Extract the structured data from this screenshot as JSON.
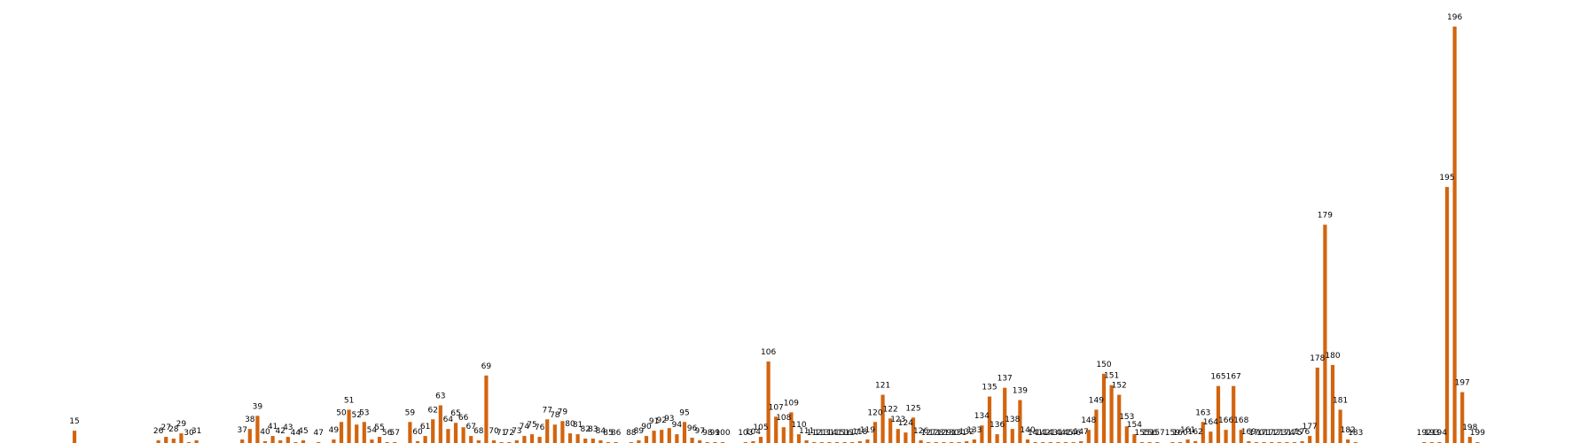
{
  "chart_data": {
    "type": "bar",
    "title": "",
    "xlabel": "",
    "ylabel": "",
    "grid": false,
    "legend": "none",
    "bar_color": "#d3640e",
    "label_color": "#000000",
    "background": "#ffffff",
    "ylim": [
      0,
      480
    ],
    "points": [
      {
        "x": 15,
        "value": 14
      },
      {
        "x": 26,
        "value": 3
      },
      {
        "x": 27,
        "value": 7
      },
      {
        "x": 28,
        "value": 5
      },
      {
        "x": 29,
        "value": 11
      },
      {
        "x": 30,
        "value": 1
      },
      {
        "x": 31,
        "value": 3
      },
      {
        "x": 37,
        "value": 4
      },
      {
        "x": 38,
        "value": 16
      },
      {
        "x": 39,
        "value": 31
      },
      {
        "x": 40,
        "value": 2
      },
      {
        "x": 41,
        "value": 8
      },
      {
        "x": 42,
        "value": 3
      },
      {
        "x": 43,
        "value": 7
      },
      {
        "x": 44,
        "value": 1
      },
      {
        "x": 45,
        "value": 3
      },
      {
        "x": 47,
        "value": 1
      },
      {
        "x": 49,
        "value": 4
      },
      {
        "x": 50,
        "value": 24
      },
      {
        "x": 51,
        "value": 38
      },
      {
        "x": 52,
        "value": 21
      },
      {
        "x": 53,
        "value": 24
      },
      {
        "x": 54,
        "value": 4
      },
      {
        "x": 55,
        "value": 7
      },
      {
        "x": 56,
        "value": 1
      },
      {
        "x": 57,
        "value": 1
      },
      {
        "x": 59,
        "value": 24
      },
      {
        "x": 60,
        "value": 2
      },
      {
        "x": 61,
        "value": 8
      },
      {
        "x": 62,
        "value": 27
      },
      {
        "x": 63,
        "value": 43
      },
      {
        "x": 64,
        "value": 16
      },
      {
        "x": 65,
        "value": 23
      },
      {
        "x": 66,
        "value": 18
      },
      {
        "x": 67,
        "value": 8
      },
      {
        "x": 68,
        "value": 3
      },
      {
        "x": 69,
        "value": 77
      },
      {
        "x": 70,
        "value": 3
      },
      {
        "x": 71,
        "value": 1
      },
      {
        "x": 72,
        "value": 1
      },
      {
        "x": 73,
        "value": 3
      },
      {
        "x": 74,
        "value": 8
      },
      {
        "x": 75,
        "value": 10
      },
      {
        "x": 76,
        "value": 7
      },
      {
        "x": 77,
        "value": 27
      },
      {
        "x": 78,
        "value": 21
      },
      {
        "x": 79,
        "value": 25
      },
      {
        "x": 80,
        "value": 11
      },
      {
        "x": 81,
        "value": 10
      },
      {
        "x": 82,
        "value": 5
      },
      {
        "x": 83,
        "value": 5
      },
      {
        "x": 84,
        "value": 3
      },
      {
        "x": 85,
        "value": 1
      },
      {
        "x": 86,
        "value": 1
      },
      {
        "x": 88,
        "value": 1
      },
      {
        "x": 89,
        "value": 3
      },
      {
        "x": 90,
        "value": 8
      },
      {
        "x": 91,
        "value": 14
      },
      {
        "x": 92,
        "value": 15
      },
      {
        "x": 93,
        "value": 17
      },
      {
        "x": 94,
        "value": 10
      },
      {
        "x": 95,
        "value": 24
      },
      {
        "x": 96,
        "value": 6
      },
      {
        "x": 97,
        "value": 3
      },
      {
        "x": 98,
        "value": 1
      },
      {
        "x": 99,
        "value": 1
      },
      {
        "x": 100,
        "value": 1
      },
      {
        "x": 103,
        "value": 1
      },
      {
        "x": 104,
        "value": 2
      },
      {
        "x": 105,
        "value": 7
      },
      {
        "x": 106,
        "value": 93
      },
      {
        "x": 107,
        "value": 30
      },
      {
        "x": 108,
        "value": 18
      },
      {
        "x": 109,
        "value": 35
      },
      {
        "x": 110,
        "value": 10
      },
      {
        "x": 111,
        "value": 3
      },
      {
        "x": 112,
        "value": 1
      },
      {
        "x": 113,
        "value": 1
      },
      {
        "x": 114,
        "value": 1
      },
      {
        "x": 115,
        "value": 1
      },
      {
        "x": 116,
        "value": 1
      },
      {
        "x": 117,
        "value": 1
      },
      {
        "x": 118,
        "value": 2
      },
      {
        "x": 119,
        "value": 4
      },
      {
        "x": 120,
        "value": 24
      },
      {
        "x": 121,
        "value": 55
      },
      {
        "x": 122,
        "value": 28
      },
      {
        "x": 123,
        "value": 16
      },
      {
        "x": 124,
        "value": 12
      },
      {
        "x": 125,
        "value": 29
      },
      {
        "x": 126,
        "value": 3
      },
      {
        "x": 127,
        "value": 1
      },
      {
        "x": 128,
        "value": 1
      },
      {
        "x": 129,
        "value": 1
      },
      {
        "x": 130,
        "value": 1
      },
      {
        "x": 131,
        "value": 1
      },
      {
        "x": 132,
        "value": 2
      },
      {
        "x": 133,
        "value": 4
      },
      {
        "x": 134,
        "value": 20
      },
      {
        "x": 135,
        "value": 53
      },
      {
        "x": 136,
        "value": 10
      },
      {
        "x": 137,
        "value": 63
      },
      {
        "x": 138,
        "value": 16
      },
      {
        "x": 139,
        "value": 49
      },
      {
        "x": 140,
        "value": 4
      },
      {
        "x": 141,
        "value": 1
      },
      {
        "x": 142,
        "value": 1
      },
      {
        "x": 143,
        "value": 1
      },
      {
        "x": 144,
        "value": 1
      },
      {
        "x": 145,
        "value": 1
      },
      {
        "x": 146,
        "value": 1
      },
      {
        "x": 147,
        "value": 2
      },
      {
        "x": 148,
        "value": 15
      },
      {
        "x": 149,
        "value": 38
      },
      {
        "x": 150,
        "value": 79
      },
      {
        "x": 151,
        "value": 66
      },
      {
        "x": 152,
        "value": 55
      },
      {
        "x": 153,
        "value": 19
      },
      {
        "x": 154,
        "value": 10
      },
      {
        "x": 155,
        "value": 1
      },
      {
        "x": 156,
        "value": 1
      },
      {
        "x": 157,
        "value": 1
      },
      {
        "x": 159,
        "value": 1
      },
      {
        "x": 160,
        "value": 1
      },
      {
        "x": 161,
        "value": 4
      },
      {
        "x": 162,
        "value": 2
      },
      {
        "x": 163,
        "value": 24
      },
      {
        "x": 164,
        "value": 13
      },
      {
        "x": 165,
        "value": 65
      },
      {
        "x": 166,
        "value": 15
      },
      {
        "x": 167,
        "value": 65
      },
      {
        "x": 168,
        "value": 15
      },
      {
        "x": 169,
        "value": 2
      },
      {
        "x": 170,
        "value": 1
      },
      {
        "x": 171,
        "value": 1
      },
      {
        "x": 172,
        "value": 1
      },
      {
        "x": 173,
        "value": 1
      },
      {
        "x": 174,
        "value": 1
      },
      {
        "x": 175,
        "value": 1
      },
      {
        "x": 176,
        "value": 2
      },
      {
        "x": 177,
        "value": 8
      },
      {
        "x": 178,
        "value": 86
      },
      {
        "x": 179,
        "value": 249
      },
      {
        "x": 180,
        "value": 89
      },
      {
        "x": 181,
        "value": 38
      },
      {
        "x": 182,
        "value": 4
      },
      {
        "x": 183,
        "value": 1
      },
      {
        "x": 192,
        "value": 1
      },
      {
        "x": 193,
        "value": 1
      },
      {
        "x": 194,
        "value": 1
      },
      {
        "x": 195,
        "value": 292
      },
      {
        "x": 196,
        "value": 475
      },
      {
        "x": 197,
        "value": 58
      },
      {
        "x": 198,
        "value": 7
      },
      {
        "x": 199,
        "value": 1
      }
    ]
  }
}
